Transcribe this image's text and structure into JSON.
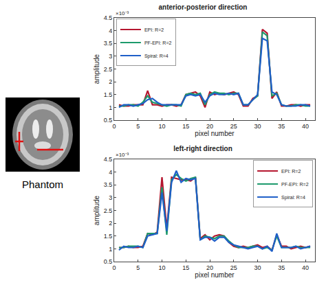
{
  "phantom": {
    "label": "Phantom"
  },
  "chart_data": [
    {
      "type": "line",
      "title": "anterior-posterior direction",
      "x_label": "pixel number",
      "y_label": "amplitude",
      "annotations": [
        "×10⁻³"
      ],
      "x": [
        1,
        2,
        3,
        4,
        5,
        6,
        7,
        8,
        9,
        10,
        11,
        12,
        13,
        14,
        15,
        16,
        17,
        18,
        19,
        20,
        21,
        22,
        23,
        24,
        25,
        26,
        27,
        28,
        29,
        30,
        31,
        32,
        33,
        34,
        35,
        36,
        37,
        38,
        39,
        40,
        41
      ],
      "series": [
        {
          "name": "EPI: R=2",
          "color": "#b5162f",
          "values": [
            1.1,
            1.05,
            1.05,
            1.1,
            1.1,
            1.1,
            1.65,
            1.1,
            1.1,
            1.05,
            1.1,
            1.1,
            1.05,
            1.1,
            1.5,
            1.55,
            1.6,
            1.45,
            1.0,
            1.6,
            1.5,
            1.55,
            1.5,
            1.55,
            1.6,
            1.5,
            1.05,
            1.05,
            1.35,
            1.45,
            4.05,
            3.9,
            1.35,
            1.6,
            1.05,
            1.05,
            1.1,
            1.1,
            1.05,
            1.1,
            1.1
          ]
        },
        {
          "name": "PF-EPI: R=2",
          "color": "#1d9a6c",
          "values": [
            1.05,
            1.05,
            1.1,
            1.1,
            1.05,
            1.2,
            1.45,
            1.2,
            1.15,
            1.1,
            1.05,
            1.1,
            1.1,
            1.05,
            1.5,
            1.55,
            1.5,
            1.55,
            1.1,
            1.5,
            1.6,
            1.55,
            1.55,
            1.5,
            1.55,
            1.55,
            1.1,
            1.1,
            1.3,
            1.45,
            3.95,
            3.8,
            1.45,
            1.55,
            1.1,
            1.05,
            1.05,
            1.1,
            1.1,
            1.05,
            1.05
          ]
        },
        {
          "name": "Spiral: R=4",
          "color": "#1f5fc8",
          "values": [
            1.0,
            1.1,
            1.1,
            1.05,
            1.1,
            1.15,
            1.3,
            1.35,
            1.2,
            1.1,
            1.1,
            1.1,
            1.1,
            1.1,
            1.45,
            1.5,
            1.45,
            1.5,
            1.2,
            1.45,
            1.55,
            1.5,
            1.5,
            1.55,
            1.5,
            1.55,
            1.1,
            1.1,
            1.3,
            1.5,
            3.7,
            3.6,
            1.6,
            1.5,
            1.1,
            1.05,
            1.05,
            1.05,
            1.1,
            1.1,
            1.05
          ]
        }
      ],
      "xlim": [
        0,
        42
      ],
      "xticks": [
        0,
        5,
        10,
        15,
        20,
        25,
        30,
        35,
        40
      ],
      "ylim": [
        0.5,
        4.5
      ],
      "yticks": [
        0.5,
        1,
        1.5,
        2,
        2.5,
        3,
        3.5,
        4,
        4.5
      ],
      "grid": false,
      "legend": "upper left"
    },
    {
      "type": "line",
      "title": "left-right direction",
      "x_label": "pixel number",
      "y_label": "amplitude",
      "annotations": [
        "×10⁻³"
      ],
      "x": [
        1,
        2,
        3,
        4,
        5,
        6,
        7,
        8,
        9,
        10,
        11,
        12,
        13,
        14,
        15,
        16,
        17,
        18,
        19,
        20,
        21,
        22,
        23,
        24,
        25,
        26,
        27,
        28,
        29,
        30,
        31,
        32,
        33,
        34,
        35,
        36,
        37,
        38,
        39,
        40,
        41
      ],
      "series": [
        {
          "name": "EPI: R=2",
          "color": "#b5162f",
          "values": [
            1.05,
            1.05,
            1.1,
            1.05,
            1.05,
            1.1,
            1.6,
            1.55,
            1.65,
            3.8,
            1.8,
            3.8,
            3.75,
            3.7,
            3.7,
            3.65,
            3.8,
            1.4,
            1.55,
            1.35,
            1.5,
            1.55,
            1.5,
            1.25,
            1.1,
            1.05,
            1.1,
            1.05,
            1.1,
            1.15,
            1.05,
            1.1,
            0.95,
            1.55,
            1.1,
            1.1,
            1.0,
            1.05,
            1.1,
            1.05,
            1.1
          ]
        },
        {
          "name": "PF-EPI: R=2",
          "color": "#1d9a6c",
          "values": [
            1.05,
            1.05,
            1.1,
            1.1,
            1.1,
            1.05,
            1.6,
            1.6,
            1.6,
            3.4,
            1.55,
            3.7,
            3.9,
            3.75,
            3.65,
            3.75,
            3.8,
            1.35,
            1.5,
            1.45,
            1.4,
            1.5,
            1.5,
            1.3,
            1.15,
            1.05,
            1.05,
            1.05,
            1.1,
            1.1,
            1.0,
            1.05,
            0.95,
            1.5,
            1.05,
            1.05,
            1.05,
            1.1,
            1.05,
            1.05,
            1.05
          ]
        },
        {
          "name": "Spiral: R=4",
          "color": "#1f5fc8",
          "values": [
            0.95,
            1.1,
            1.05,
            1.05,
            1.1,
            1.05,
            1.5,
            1.55,
            1.6,
            3.2,
            1.7,
            3.6,
            4.05,
            3.6,
            3.75,
            3.7,
            3.75,
            1.35,
            1.45,
            1.45,
            1.3,
            1.45,
            1.45,
            1.25,
            1.15,
            1.1,
            1.05,
            1.0,
            1.05,
            1.1,
            1.0,
            1.1,
            0.9,
            1.6,
            1.05,
            1.05,
            1.05,
            1.1,
            1.0,
            1.05,
            1.1
          ]
        }
      ],
      "xlim": [
        0,
        42
      ],
      "xticks": [
        0,
        5,
        10,
        15,
        20,
        25,
        30,
        35,
        40
      ],
      "ylim": [
        0.5,
        4.5
      ],
      "yticks": [
        0.5,
        1,
        1.5,
        2,
        2.5,
        3,
        3.5,
        4,
        4.5
      ],
      "grid": false,
      "legend": "upper right"
    }
  ]
}
